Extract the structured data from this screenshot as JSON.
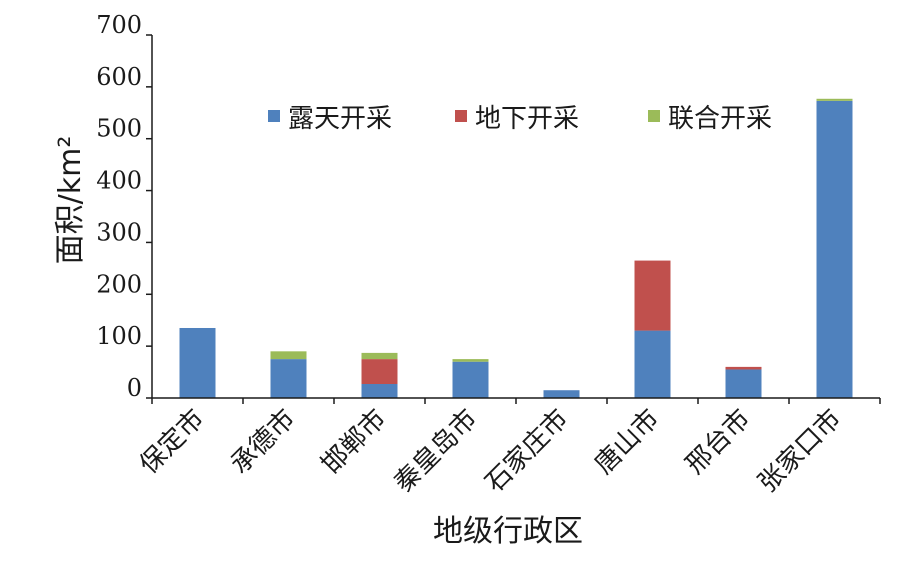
{
  "chart_data": {
    "type": "bar",
    "stacked": true,
    "title": "",
    "xlabel": "地级行政区",
    "ylabel": "面积/km²",
    "ylim": [
      0,
      700
    ],
    "yticks": [
      "700",
      "600",
      "500",
      "400",
      "300",
      "200",
      "100",
      "0"
    ],
    "categories": [
      "保定市",
      "承德市",
      "邯郸市",
      "秦皇岛市",
      "石家庄市",
      "唐山市",
      "邢台市",
      "张家口市"
    ],
    "series": [
      {
        "name": "露天开采",
        "color": "#4f81bd",
        "values": [
          135,
          75,
          27,
          70,
          15,
          130,
          55,
          573
        ]
      },
      {
        "name": "地下开采",
        "color": "#c0504d",
        "values": [
          0,
          0,
          48,
          0,
          0,
          135,
          5,
          0
        ]
      },
      {
        "name": "联合开采",
        "color": "#9bbb59",
        "values": [
          0,
          15,
          12,
          5,
          0,
          0,
          0,
          4
        ]
      }
    ],
    "legend_position": "top-center",
    "grid": false
  }
}
